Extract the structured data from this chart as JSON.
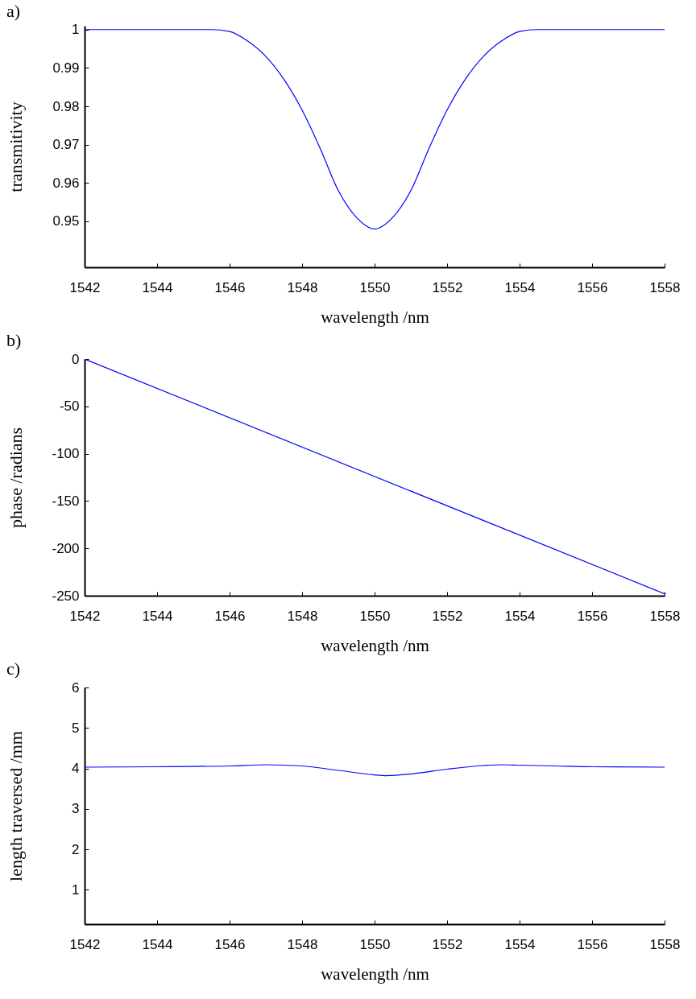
{
  "chart_data": [
    {
      "type": "line",
      "title": "a)",
      "xlabel": "wavelength /nm",
      "ylabel": "transmitivity",
      "x": [
        1542,
        1544,
        1545,
        1545.5,
        1546,
        1546.5,
        1547,
        1547.5,
        1548,
        1548.5,
        1549,
        1549.5,
        1550,
        1550.5,
        1551,
        1551.5,
        1552,
        1552.5,
        1553,
        1553.5,
        1554,
        1554.5,
        1555,
        1556,
        1558
      ],
      "series": [
        {
          "color": "#0000ff",
          "values": [
            1,
            1,
            1,
            1,
            0.9995,
            0.997,
            0.993,
            0.987,
            0.979,
            0.969,
            0.958,
            0.951,
            0.948,
            0.951,
            0.958,
            0.969,
            0.979,
            0.987,
            0.993,
            0.997,
            0.9995,
            1,
            1,
            1,
            1
          ]
        }
      ],
      "xlim": [
        1542,
        1558
      ],
      "ylim": [
        0.938,
        1.001
      ],
      "xticks": [
        1542,
        1544,
        1546,
        1548,
        1550,
        1552,
        1554,
        1556,
        1558
      ],
      "yticks": [
        0.95,
        0.96,
        0.97,
        0.98,
        0.99,
        {
          "value": 1,
          "label": "1"
        }
      ],
      "grid": false
    },
    {
      "type": "line",
      "title": "b)",
      "xlabel": "wavelength /nm",
      "ylabel": "phase  /radians",
      "x": [
        1542,
        1558
      ],
      "series": [
        {
          "color": "#0000ff",
          "values": [
            0,
            -248
          ]
        }
      ],
      "xlim": [
        1542,
        1558
      ],
      "ylim": [
        -250,
        0
      ],
      "xticks": [
        1542,
        1544,
        1546,
        1548,
        1550,
        1552,
        1554,
        1556,
        1558
      ],
      "yticks": [
        -250,
        -200,
        -150,
        -100,
        -50,
        0
      ],
      "grid": false
    },
    {
      "type": "line",
      "title": "c)",
      "xlabel": "wavelength /nm",
      "ylabel": "length traversed /mm",
      "x": [
        1542,
        1544,
        1546,
        1547,
        1548,
        1549,
        1550,
        1550.3,
        1551,
        1552,
        1553,
        1553.5,
        1554,
        1555,
        1556,
        1558
      ],
      "series": [
        {
          "color": "#0000ff",
          "values": [
            4.03,
            4.04,
            4.06,
            4.09,
            4.06,
            3.95,
            3.84,
            3.82,
            3.86,
            3.98,
            4.07,
            4.09,
            4.08,
            4.06,
            4.04,
            4.03
          ]
        }
      ],
      "xlim": [
        1542,
        1558
      ],
      "ylim": [
        0.15,
        6
      ],
      "xticks": [
        1542,
        1544,
        1546,
        1548,
        1550,
        1552,
        1554,
        1556,
        1558
      ],
      "yticks": [
        1,
        2,
        3,
        4,
        5,
        6
      ],
      "grid": false
    }
  ]
}
